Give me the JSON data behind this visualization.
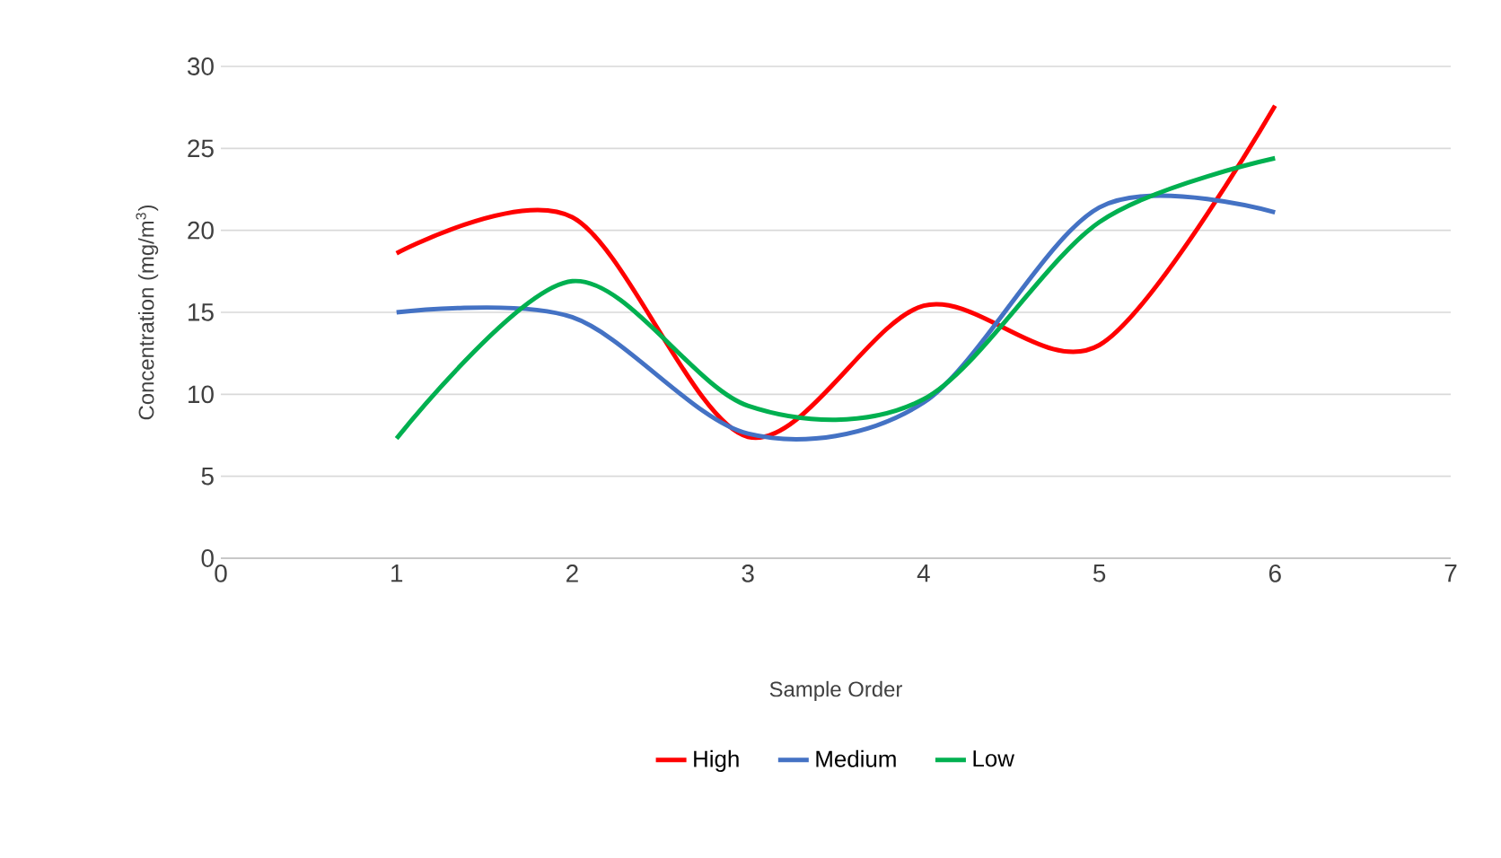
{
  "chart_data": {
    "type": "line",
    "xlabel": "Sample Order",
    "ylabel": "Concentration (mg/m$^{3}$)",
    "x": [
      1,
      2,
      3,
      4,
      5,
      6
    ],
    "series": [
      {
        "name": "High",
        "color": "#ff0000",
        "values": [
          18.6,
          20.8,
          7.4,
          15.4,
          13.0,
          27.6
        ]
      },
      {
        "name": "Medium",
        "color": "#4472c4",
        "values": [
          15.0,
          14.7,
          7.6,
          9.5,
          21.4,
          21.1
        ]
      },
      {
        "name": "Low",
        "color": "#00b050",
        "values": [
          7.3,
          16.9,
          9.3,
          9.7,
          20.5,
          24.4
        ]
      }
    ],
    "xlim": [
      0,
      7
    ],
    "ylim": [
      0,
      30
    ],
    "xticks": [
      0,
      1,
      2,
      3,
      4,
      5,
      6,
      7
    ],
    "yticks": [
      0,
      5,
      10,
      15,
      20,
      25,
      30
    ],
    "grid": "y",
    "legend": "bottom"
  }
}
